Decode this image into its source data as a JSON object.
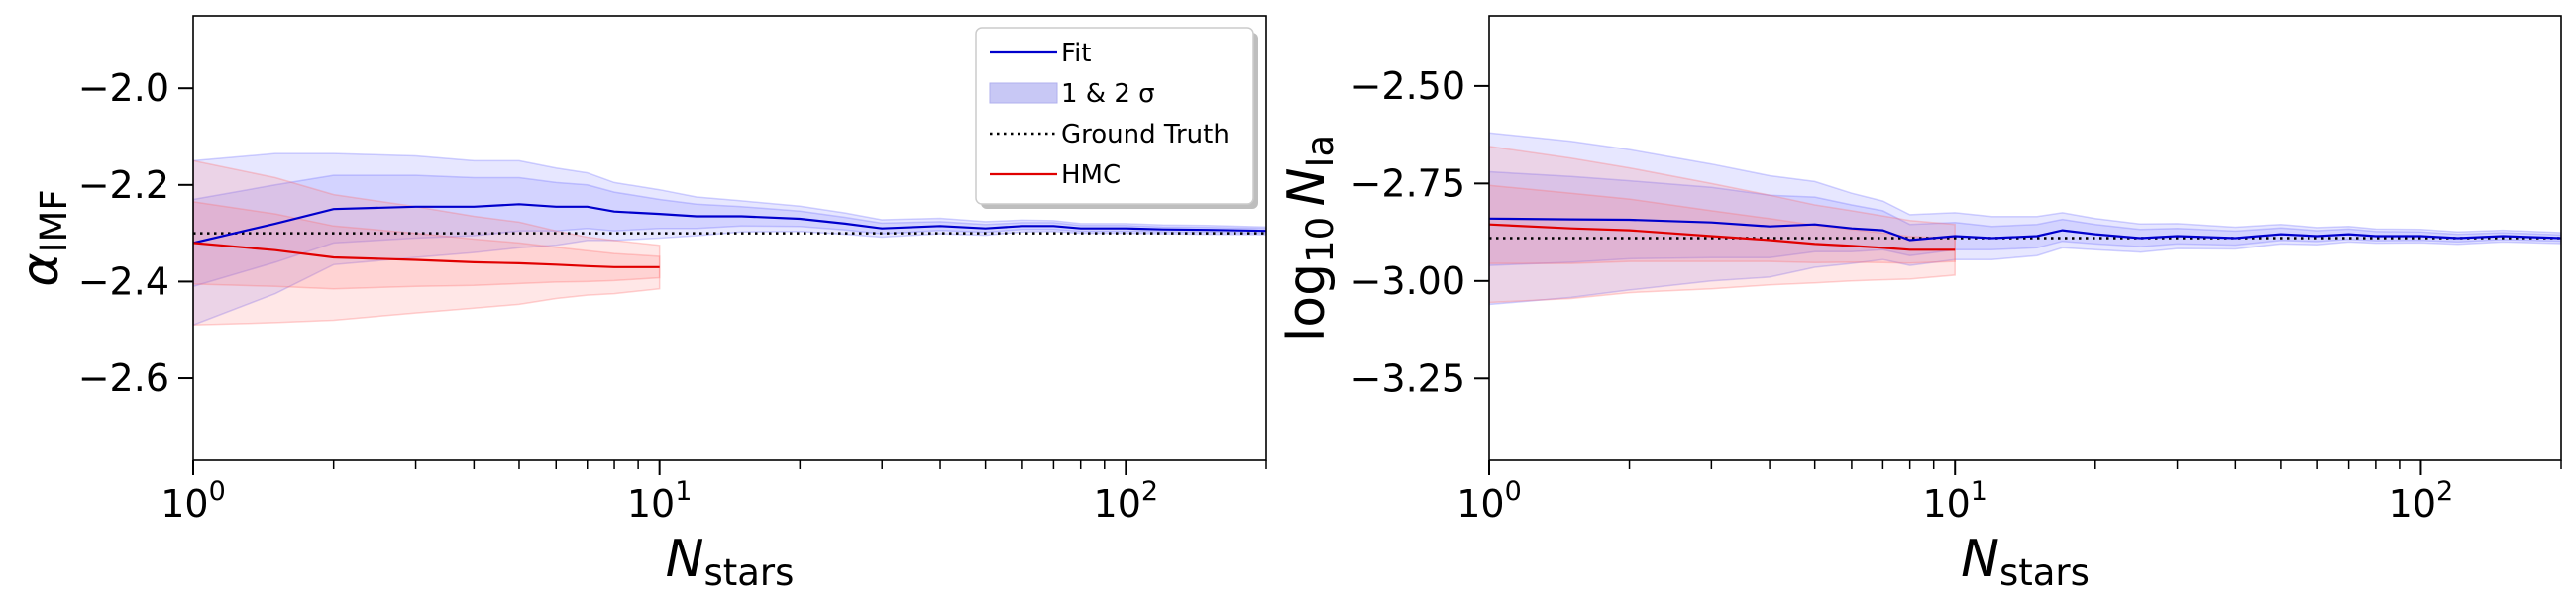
{
  "chart_data": [
    {
      "type": "line",
      "xscale": "log",
      "xlim": [
        1,
        200
      ],
      "ylim": [
        -2.77,
        -1.85
      ],
      "xlabel": {
        "base": "N",
        "sub": "stars"
      },
      "ylabel": {
        "base": "α",
        "sub": "IMF"
      },
      "xticks": [
        {
          "value": 1,
          "base": "10",
          "exp": "0"
        },
        {
          "value": 10,
          "base": "10",
          "exp": "1"
        },
        {
          "value": 100,
          "base": "10",
          "exp": "2"
        }
      ],
      "yticks": [
        {
          "value": -2.0,
          "label": "−2.0"
        },
        {
          "value": -2.2,
          "label": "−2.2"
        },
        {
          "value": -2.4,
          "label": "−2.4"
        },
        {
          "value": -2.6,
          "label": "−2.6"
        }
      ],
      "ground_truth": -2.3,
      "legend": {
        "position": "top-right",
        "entries": [
          {
            "label": "Fit",
            "kind": "line",
            "color": "#0000cc"
          },
          {
            "label": "1 & 2 σ",
            "kind": "band",
            "color": "#c8c8f5"
          },
          {
            "label": "Ground Truth",
            "kind": "dotted",
            "color": "#000000"
          },
          {
            "label": "HMC",
            "kind": "line",
            "color": "#e00000"
          }
        ]
      },
      "series": [
        {
          "name": "Fit",
          "color": "#0000cc",
          "band_color": "#6b6bff",
          "x": [
            1,
            1.5,
            2,
            3,
            4,
            5,
            6,
            7,
            8,
            10,
            12,
            15,
            20,
            25,
            30,
            40,
            50,
            60,
            70,
            80,
            100,
            120,
            150,
            200
          ],
          "y": [
            -2.32,
            -2.28,
            -2.25,
            -2.245,
            -2.245,
            -2.24,
            -2.245,
            -2.245,
            -2.255,
            -2.26,
            -2.265,
            -2.265,
            -2.27,
            -2.28,
            -2.29,
            -2.285,
            -2.29,
            -2.285,
            -2.285,
            -2.29,
            -2.29,
            -2.292,
            -2.293,
            -2.295
          ],
          "sigma1": [
            0.09,
            0.08,
            0.07,
            0.065,
            0.06,
            0.055,
            0.05,
            0.045,
            0.04,
            0.03,
            0.025,
            0.02,
            0.016,
            0.013,
            0.011,
            0.009,
            0.008,
            0.007,
            0.007,
            0.006,
            0.006,
            0.005,
            0.005,
            0.005
          ],
          "sigma2": [
            0.17,
            0.145,
            0.115,
            0.105,
            0.095,
            0.09,
            0.08,
            0.07,
            0.06,
            0.05,
            0.04,
            0.032,
            0.026,
            0.022,
            0.018,
            0.016,
            0.014,
            0.012,
            0.011,
            0.01,
            0.01,
            0.009,
            0.009,
            0.008
          ]
        },
        {
          "name": "HMC",
          "color": "#e00000",
          "band_color": "#ff6b6b",
          "x": [
            1,
            1.5,
            2,
            3,
            4,
            5,
            6,
            7,
            8,
            10
          ],
          "y": [
            -2.32,
            -2.335,
            -2.35,
            -2.355,
            -2.36,
            -2.362,
            -2.365,
            -2.368,
            -2.37,
            -2.37
          ],
          "sigma1": [
            0.085,
            0.075,
            0.065,
            0.055,
            0.048,
            0.042,
            0.036,
            0.032,
            0.028,
            0.022
          ],
          "sigma2": [
            0.17,
            0.15,
            0.13,
            0.11,
            0.095,
            0.085,
            0.07,
            0.06,
            0.055,
            0.045
          ]
        }
      ]
    },
    {
      "type": "line",
      "xscale": "log",
      "xlim": [
        1,
        200
      ],
      "ylim": [
        -3.46,
        -2.32
      ],
      "xlabel": {
        "base": "N",
        "sub": "stars"
      },
      "ylabel": {
        "prefix": "log",
        "prefix_sub": "10",
        "base": "N",
        "sub": "Ia"
      },
      "xticks": [
        {
          "value": 1,
          "base": "10",
          "exp": "0"
        },
        {
          "value": 10,
          "base": "10",
          "exp": "1"
        },
        {
          "value": 100,
          "base": "10",
          "exp": "2"
        }
      ],
      "yticks": [
        {
          "value": -2.5,
          "label": "−2.50"
        },
        {
          "value": -2.75,
          "label": "−2.75"
        },
        {
          "value": -3.0,
          "label": "−3.00"
        },
        {
          "value": -3.25,
          "label": "−3.25"
        }
      ],
      "ground_truth": -2.89,
      "series": [
        {
          "name": "Fit",
          "color": "#0000cc",
          "band_color": "#6b6bff",
          "x": [
            1,
            1.5,
            2,
            3,
            4,
            5,
            6,
            7,
            8,
            10,
            12,
            15,
            17,
            20,
            25,
            30,
            40,
            50,
            60,
            70,
            80,
            100,
            120,
            150,
            200
          ],
          "y": [
            -2.84,
            -2.842,
            -2.843,
            -2.85,
            -2.86,
            -2.855,
            -2.865,
            -2.87,
            -2.895,
            -2.885,
            -2.89,
            -2.885,
            -2.87,
            -2.88,
            -2.89,
            -2.885,
            -2.89,
            -2.88,
            -2.885,
            -2.88,
            -2.885,
            -2.885,
            -2.89,
            -2.885,
            -2.89
          ],
          "sigma1": [
            0.12,
            0.11,
            0.1,
            0.09,
            0.08,
            0.07,
            0.06,
            0.05,
            0.04,
            0.035,
            0.03,
            0.03,
            0.028,
            0.025,
            0.022,
            0.02,
            0.018,
            0.016,
            0.014,
            0.013,
            0.012,
            0.011,
            0.01,
            0.009,
            0.008
          ],
          "sigma2": [
            0.22,
            0.2,
            0.18,
            0.15,
            0.13,
            0.11,
            0.09,
            0.075,
            0.065,
            0.06,
            0.055,
            0.05,
            0.045,
            0.04,
            0.036,
            0.032,
            0.028,
            0.025,
            0.022,
            0.02,
            0.018,
            0.017,
            0.016,
            0.015,
            0.014
          ]
        },
        {
          "name": "HMC",
          "color": "#e00000",
          "band_color": "#ff6b6b",
          "x": [
            1,
            1.5,
            2,
            3,
            4,
            5,
            6,
            7,
            8,
            10
          ],
          "y": [
            -2.855,
            -2.865,
            -2.87,
            -2.885,
            -2.895,
            -2.905,
            -2.91,
            -2.915,
            -2.92,
            -2.92
          ],
          "sigma1": [
            0.1,
            0.09,
            0.08,
            0.065,
            0.055,
            0.048,
            0.042,
            0.038,
            0.034,
            0.03
          ],
          "sigma2": [
            0.2,
            0.18,
            0.16,
            0.135,
            0.115,
            0.1,
            0.09,
            0.082,
            0.075,
            0.065
          ]
        }
      ]
    }
  ]
}
